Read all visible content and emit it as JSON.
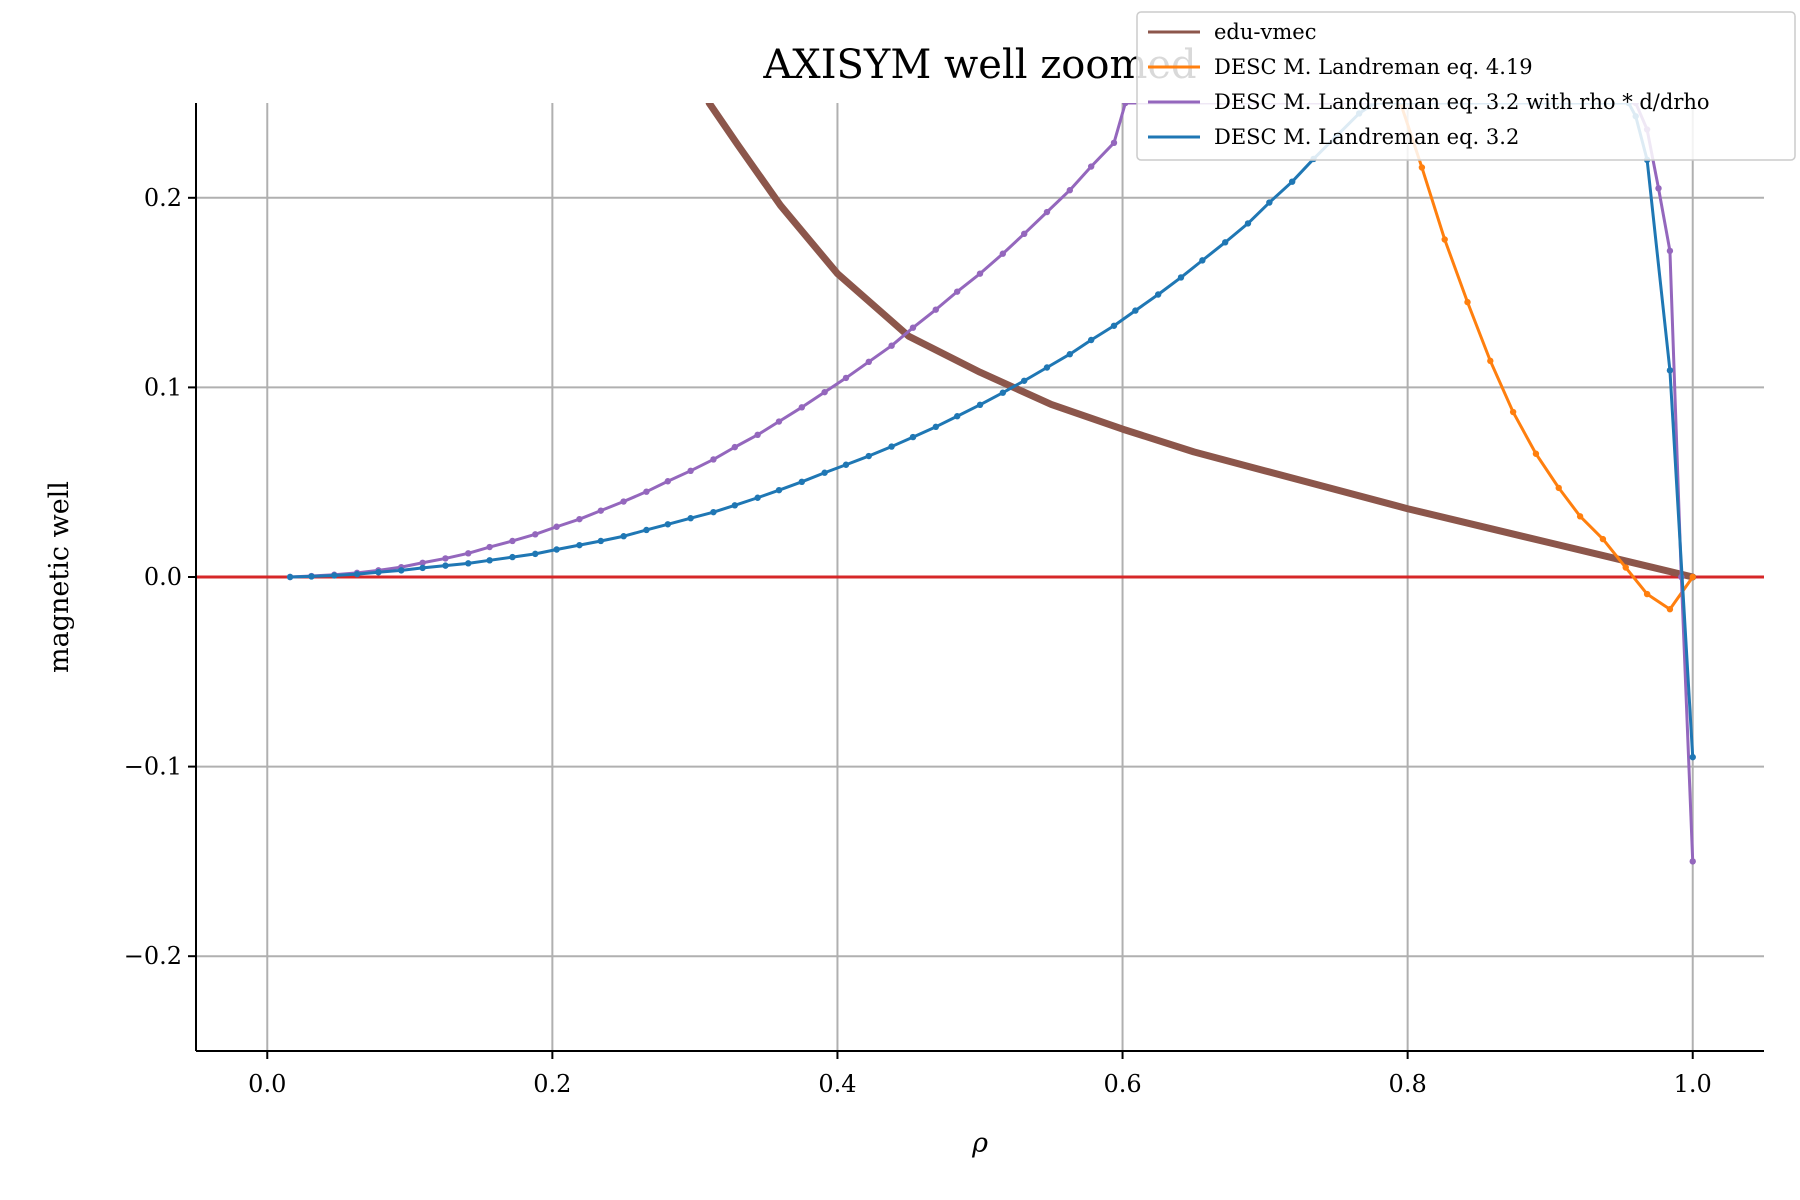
{
  "chart_data": {
    "type": "line",
    "title": "AXISYM well zoomed",
    "xlabel": "ρ",
    "ylabel": "magnetic well",
    "xlim": [
      -0.05,
      1.05
    ],
    "ylim": [
      -0.25,
      0.25
    ],
    "xticks": [
      0.0,
      0.2,
      0.4,
      0.6,
      0.8,
      1.0
    ],
    "xtick_labels": [
      "0.0",
      "0.2",
      "0.4",
      "0.6",
      "0.8",
      "1.0"
    ],
    "yticks": [
      -0.2,
      -0.1,
      0.0,
      0.1,
      0.2
    ],
    "ytick_labels": [
      "−0.2",
      "−0.1",
      "0.0",
      "0.1",
      "0.2"
    ],
    "grid": true,
    "legend_position": "top-right",
    "reference_line": {
      "y": 0.0,
      "color": "#d62728"
    },
    "series": [
      {
        "name": "edu-vmec",
        "color": "#8c564b",
        "markers": false,
        "x": [
          0.31,
          0.33,
          0.36,
          0.4,
          0.45,
          0.5,
          0.55,
          0.6,
          0.65,
          0.7,
          0.75,
          0.8,
          0.85,
          0.9,
          0.95,
          1.0
        ],
        "y": [
          0.25,
          0.228,
          0.196,
          0.16,
          0.127,
          0.108,
          0.091,
          0.078,
          0.066,
          0.056,
          0.046,
          0.036,
          0.027,
          0.018,
          0.009,
          0.0
        ]
      },
      {
        "name": "DESC M. Landreman eq. 4.19",
        "color": "#ff7f0e",
        "markers": true,
        "x": [
          0.795,
          0.81,
          0.826,
          0.842,
          0.858,
          0.874,
          0.89,
          0.906,
          0.921,
          0.937,
          0.953,
          0.968,
          0.984,
          1.0
        ],
        "y": [
          0.25,
          0.216,
          0.178,
          0.145,
          0.114,
          0.087,
          0.065,
          0.047,
          0.032,
          0.02,
          0.005,
          -0.009,
          -0.017,
          0.0
        ]
      },
      {
        "name": "DESC M. Landreman eq. 3.2 with rho * d/drho",
        "color": "#9467bd",
        "markers": true,
        "x": [
          0.016,
          0.031,
          0.047,
          0.063,
          0.078,
          0.094,
          0.109,
          0.125,
          0.141,
          0.156,
          0.172,
          0.188,
          0.203,
          0.219,
          0.234,
          0.25,
          0.266,
          0.281,
          0.297,
          0.313,
          0.328,
          0.344,
          0.359,
          0.375,
          0.391,
          0.406,
          0.422,
          0.438,
          0.453,
          0.469,
          0.484,
          0.5,
          0.516,
          0.531,
          0.547,
          0.563,
          0.578,
          0.594,
          0.602,
          0.96,
          0.968,
          0.976,
          0.984,
          0.992,
          1.0
        ],
        "y": [
          0.0,
          0.0005,
          0.0012,
          0.0022,
          0.0035,
          0.0052,
          0.0075,
          0.0098,
          0.0125,
          0.0158,
          0.019,
          0.0225,
          0.0265,
          0.0305,
          0.035,
          0.0398,
          0.045,
          0.0505,
          0.056,
          0.062,
          0.0685,
          0.075,
          0.082,
          0.0895,
          0.0975,
          0.105,
          0.1135,
          0.122,
          0.1315,
          0.141,
          0.1505,
          0.16,
          0.1705,
          0.181,
          0.1925,
          0.204,
          0.2165,
          0.229,
          0.25,
          0.25,
          0.236,
          0.205,
          0.172,
          0.0,
          -0.15
        ]
      },
      {
        "name": "DESC M. Landreman eq. 3.2",
        "color": "#1f77b4",
        "markers": true,
        "x": [
          0.016,
          0.031,
          0.047,
          0.063,
          0.078,
          0.094,
          0.109,
          0.125,
          0.141,
          0.156,
          0.172,
          0.188,
          0.203,
          0.219,
          0.234,
          0.25,
          0.266,
          0.281,
          0.297,
          0.313,
          0.328,
          0.344,
          0.359,
          0.375,
          0.391,
          0.406,
          0.422,
          0.438,
          0.453,
          0.469,
          0.484,
          0.5,
          0.516,
          0.531,
          0.547,
          0.563,
          0.578,
          0.594,
          0.609,
          0.625,
          0.641,
          0.656,
          0.672,
          0.688,
          0.703,
          0.719,
          0.734,
          0.75,
          0.766,
          0.777,
          0.955,
          0.96,
          0.968,
          0.984,
          1.0
        ],
        "y": [
          0.0,
          0.0003,
          0.0008,
          0.0015,
          0.0025,
          0.0035,
          0.0048,
          0.006,
          0.0072,
          0.0088,
          0.0105,
          0.0122,
          0.0145,
          0.0168,
          0.019,
          0.0215,
          0.0248,
          0.0278,
          0.031,
          0.0342,
          0.0378,
          0.0418,
          0.0458,
          0.0502,
          0.055,
          0.0592,
          0.0638,
          0.0688,
          0.0738,
          0.0792,
          0.0848,
          0.0908,
          0.0972,
          0.1035,
          0.1105,
          0.1175,
          0.125,
          0.1325,
          0.1405,
          0.149,
          0.158,
          0.167,
          0.1765,
          0.1865,
          0.1975,
          0.2085,
          0.2205,
          0.2325,
          0.2445,
          0.25,
          0.25,
          0.243,
          0.22,
          0.109,
          -0.095
        ]
      }
    ]
  }
}
